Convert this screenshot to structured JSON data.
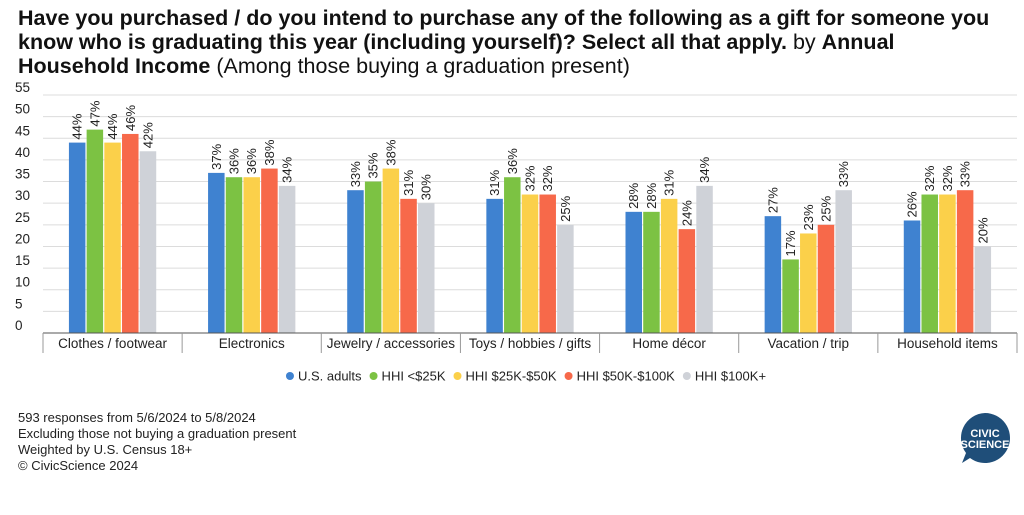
{
  "title": {
    "bold_part": "Have you purchased / do you intend to purchase any of the following as a gift for someone you know who is graduating this year (including yourself)? Select all that apply.",
    "by_text": "by",
    "by_dimension": "Annual Household Income",
    "subtitle": "(Among those buying a graduation present)"
  },
  "chart_data": {
    "type": "bar",
    "categories": [
      "Clothes / footwear",
      "Electronics",
      "Jewelry / accessories",
      "Toys / hobbies / gifts",
      "Home décor",
      "Vacation / trip",
      "Household items"
    ],
    "series": [
      {
        "name": "U.S. adults",
        "color": "#3f82d0",
        "values": [
          44,
          37,
          33,
          31,
          28,
          27,
          26
        ]
      },
      {
        "name": "HHI <$25K",
        "color": "#7cc243",
        "values": [
          47,
          36,
          35,
          36,
          28,
          17,
          32
        ]
      },
      {
        "name": "HHI $25K-$50K",
        "color": "#fbd04a",
        "values": [
          44,
          36,
          38,
          32,
          31,
          23,
          32
        ]
      },
      {
        "name": "HHI $50K-$100K",
        "color": "#f7694a",
        "values": [
          46,
          38,
          31,
          32,
          24,
          25,
          33
        ]
      },
      {
        "name": "HHI $100K+",
        "color": "#cfd2d8",
        "values": [
          42,
          34,
          30,
          25,
          34,
          33,
          20
        ]
      }
    ],
    "value_suffix": "%",
    "yticks": [
      0,
      5,
      10,
      15,
      20,
      25,
      30,
      35,
      40,
      45,
      50,
      55
    ],
    "ylim": [
      0,
      55
    ],
    "grid": true,
    "legend_position": "bottom"
  },
  "footnotes": [
    "593 responses from 5/6/2024 to 5/8/2024",
    "Excluding those not buying a graduation present",
    "Weighted by U.S. Census 18+",
    "© CivicScience 2024"
  ],
  "logo": {
    "line1": "CIVIC",
    "line2": "SCIENCE",
    "color": "#1f4e79"
  }
}
